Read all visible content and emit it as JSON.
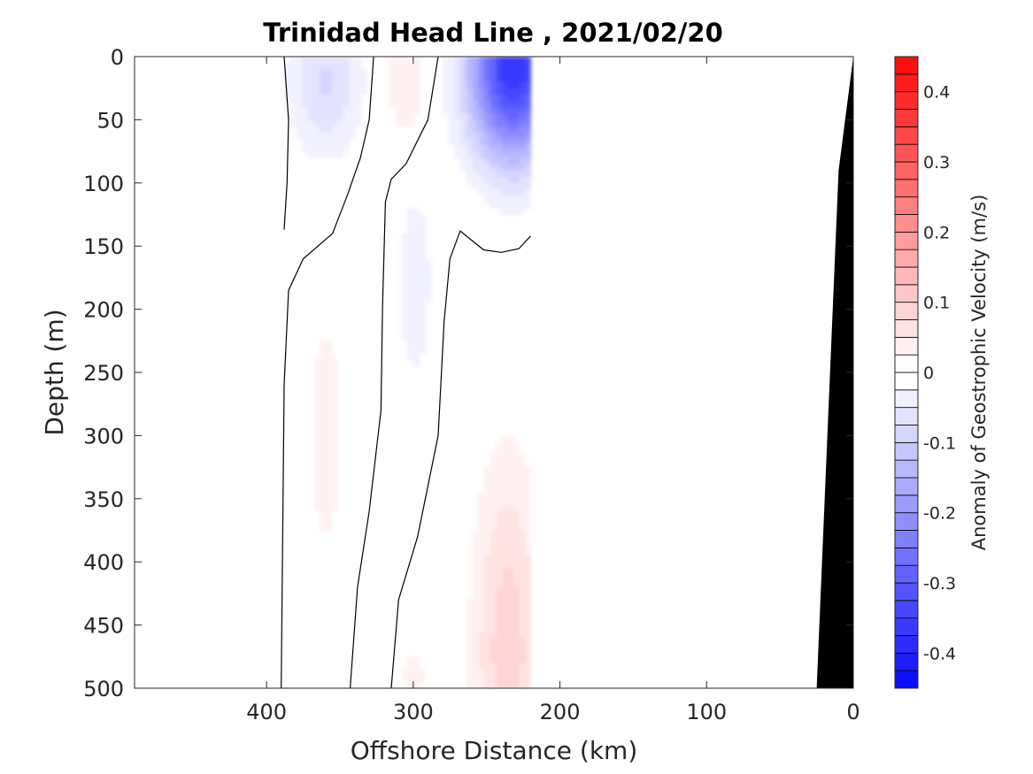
{
  "chart_data": {
    "type": "heatmap",
    "title": "Trinidad Head Line , 2021/02/20",
    "xlabel": "Offshore Distance (km)",
    "ylabel": "Depth (m)",
    "xlim": [
      490,
      0
    ],
    "ylim": [
      0,
      500
    ],
    "x_reversed": true,
    "y_reversed": true,
    "x_ticks": [
      400,
      300,
      200,
      100,
      0
    ],
    "y_ticks": [
      0,
      50,
      100,
      150,
      200,
      250,
      300,
      350,
      400,
      450,
      500
    ],
    "grid": false,
    "colorbar": {
      "label": "Anomaly of Geostrophic Velocity (m/s)",
      "range": [
        -0.45,
        0.45
      ],
      "step": 0.025,
      "ticks": [
        0.4,
        0.3,
        0.2,
        0.1,
        0,
        -0.1,
        -0.2,
        -0.3,
        -0.4
      ],
      "positive_color": "#ff0000",
      "negative_color": "#0000ff"
    },
    "data_extent_km": [
      220,
      390
    ],
    "features": [
      {
        "sign": "negative",
        "x_range": [
          340,
          395
        ],
        "depth_range": [
          0,
          130
        ],
        "core_km": 360,
        "core_depth": 20,
        "peak": -0.08
      },
      {
        "sign": "positive",
        "x_range": [
          300,
          330
        ],
        "depth_range": [
          0,
          110
        ],
        "core_km": 305,
        "core_depth": 20,
        "peak": 0.05
      },
      {
        "sign": "negative",
        "x_range": [
          220,
          285
        ],
        "depth_range": [
          0,
          140
        ],
        "core_km": 232,
        "core_depth": 10,
        "peak": -0.37
      },
      {
        "sign": "positive",
        "x_range": [
          335,
          385
        ],
        "depth_range": [
          130,
          500
        ],
        "core_km": 360,
        "core_depth": 300,
        "peak": 0.03
      },
      {
        "sign": "negative",
        "x_range": [
          285,
          315
        ],
        "depth_range": [
          110,
          300
        ],
        "core_km": 299,
        "core_depth": 180,
        "peak": -0.04
      },
      {
        "sign": "positive",
        "x_range": [
          220,
          272
        ],
        "depth_range": [
          200,
          500
        ],
        "core_km": 236,
        "core_depth": 470,
        "peak": 0.09
      },
      {
        "sign": "positive",
        "x_range": [
          290,
          310
        ],
        "depth_range": [
          460,
          500
        ],
        "core_km": 300,
        "core_depth": 490,
        "peak": 0.04
      },
      {
        "sign": "negative",
        "x_range": [
          325,
          335
        ],
        "depth_range": [
          430,
          500
        ],
        "core_km": 330,
        "core_depth": 480,
        "peak": -0.02
      }
    ],
    "zero_contours": [
      [
        [
          388,
          0
        ],
        [
          385,
          50
        ],
        [
          386,
          100
        ],
        [
          388,
          137
        ]
      ],
      [
        [
          327,
          0
        ],
        [
          330,
          50
        ],
        [
          336,
          80
        ],
        [
          345,
          110
        ],
        [
          355,
          140
        ],
        [
          375,
          160
        ],
        [
          385,
          185
        ],
        [
          388,
          260
        ],
        [
          390,
          500
        ]
      ],
      [
        [
          283,
          0
        ],
        [
          290,
          50
        ],
        [
          305,
          85
        ],
        [
          315,
          97
        ],
        [
          319,
          115
        ],
        [
          321,
          200
        ],
        [
          322,
          280
        ],
        [
          330,
          360
        ],
        [
          338,
          420
        ],
        [
          343,
          500
        ]
      ],
      [
        [
          220,
          142
        ],
        [
          228,
          152
        ],
        [
          240,
          155
        ],
        [
          252,
          153
        ],
        [
          268,
          138
        ],
        [
          275,
          160
        ],
        [
          279,
          210
        ],
        [
          283,
          300
        ],
        [
          297,
          380
        ],
        [
          310,
          430
        ],
        [
          315,
          500
        ]
      ]
    ],
    "bathymetry": [
      [
        0,
        0
      ],
      [
        10,
        90
      ],
      [
        25,
        500
      ],
      [
        0,
        500
      ]
    ]
  }
}
